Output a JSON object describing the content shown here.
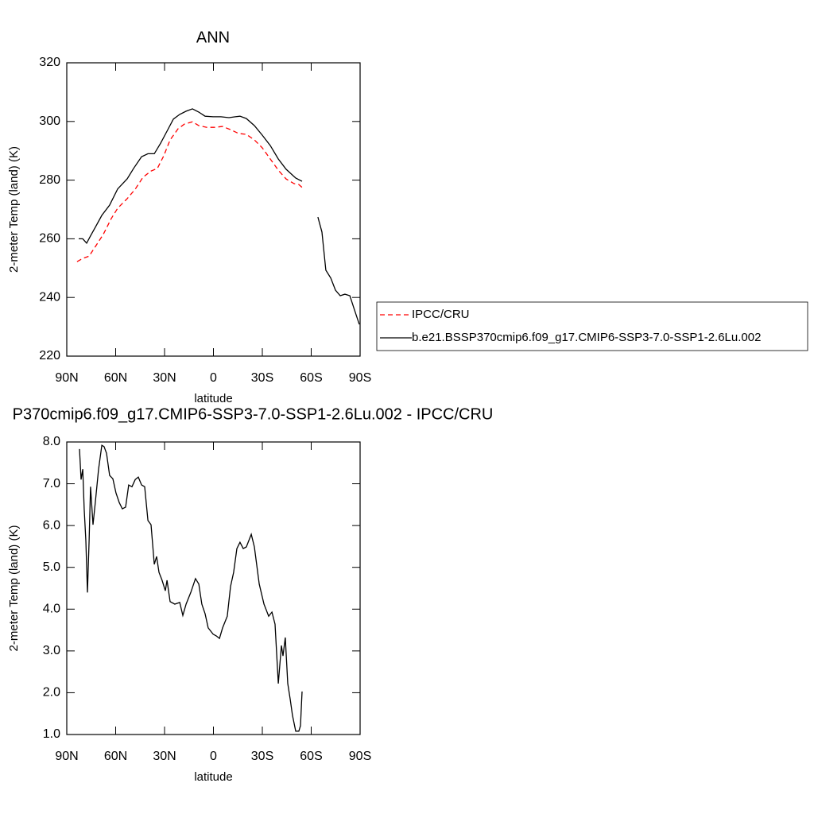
{
  "chart_data": [
    {
      "type": "line",
      "title": "ANN",
      "y_label": "2-meter Temp (land) (K)",
      "x_label": "latitude",
      "xlim": [
        90,
        -90
      ],
      "ylim": [
        220,
        320
      ],
      "xticks": [
        {
          "value": 90,
          "label": "90N"
        },
        {
          "value": 60,
          "label": "60N"
        },
        {
          "value": 30,
          "label": "30N"
        },
        0,
        {
          "value": -30,
          "label": "30S"
        },
        {
          "value": -60,
          "label": "60S"
        },
        {
          "value": -90,
          "label": "90S"
        }
      ],
      "yticks": [
        220,
        240,
        260,
        280,
        300,
        320
      ],
      "legend": "right",
      "series": [
        {
          "name": "IPCC/CRU",
          "color": "#ff0000",
          "dashed": true,
          "x": [
            83.7,
            80.2,
            76.3,
            72.4,
            67.6,
            62.7,
            58.8,
            52.9,
            48,
            43.2,
            38.3,
            34.4,
            30.5,
            26.6,
            21.7,
            17.8,
            12.9,
            9,
            4.1,
            -0.7,
            -5.6,
            -10.5,
            -15.4,
            -20.2,
            -25.1,
            -30,
            -34.9,
            -39.8,
            -44.6,
            -49.5,
            -52.4,
            -54.4
          ],
          "values": [
            252.2,
            253.3,
            254.1,
            257.4,
            261.5,
            266.9,
            270.4,
            273.7,
            276.9,
            281,
            283.1,
            284,
            288.3,
            293.7,
            297.5,
            299.1,
            299.9,
            298.6,
            298,
            298,
            298.3,
            297.2,
            295.9,
            295.6,
            293.7,
            291,
            287.2,
            283.4,
            280.4,
            278.8,
            278.5,
            277.5
          ]
        },
        {
          "name": "b.e21.BSSP370cmip6.f09_g17.CMIP6-SSP3-7.0-SSP1-2.6Lu.002",
          "color": "#000000",
          "dashed": false,
          "x": [
            82.7,
            80.2,
            77.8,
            75.4,
            72.4,
            68.5,
            63.7,
            58.8,
            52.9,
            49,
            44.1,
            40.2,
            36.3,
            32.4,
            28.5,
            24.6,
            20.7,
            16.8,
            12.9,
            9,
            5.1,
            0.2,
            -4.6,
            -9.5,
            -13.4,
            -16.3,
            -20.2,
            -25.1,
            -30,
            -34.9,
            -39.8,
            -44.6,
            -50.5,
            -54.4,
            -59.3,
            -64.1,
            -66.6,
            -69,
            -72,
            -74.9,
            -77.8,
            -80.7,
            -83.7,
            -86.6,
            -89.5
          ],
          "values": [
            260,
            260,
            258.5,
            261,
            264,
            268,
            271.5,
            277,
            280.5,
            284,
            288,
            289,
            289,
            292.6,
            296.7,
            300.8,
            302.4,
            303.5,
            304.3,
            303.2,
            301.8,
            301.6,
            301.6,
            301.3,
            301.6,
            301.8,
            301,
            298.6,
            295.3,
            291.8,
            287.2,
            283.7,
            280.7,
            279.6,
            null,
            267.4,
            262.3,
            249.3,
            246.6,
            242.5,
            240.6,
            241.1,
            240.6,
            235.7,
            230.8
          ]
        }
      ]
    },
    {
      "type": "line",
      "title": "P370cmip6.f09_g17.CMIP6-SSP3-7.0-SSP1-2.6Lu.002 - IPCC/CRU",
      "y_label": "2-meter Temp (land) (K)",
      "x_label": "latitude",
      "xlim": [
        90,
        -90
      ],
      "ylim": [
        1,
        8
      ],
      "xticks": [
        {
          "value": 90,
          "label": "90N"
        },
        {
          "value": 60,
          "label": "60N"
        },
        {
          "value": 30,
          "label": "30N"
        },
        0,
        {
          "value": -30,
          "label": "30S"
        },
        {
          "value": -60,
          "label": "60S"
        },
        {
          "value": -90,
          "label": "90S"
        }
      ],
      "yticks": [
        {
          "value": 1,
          "label": "1.0"
        },
        {
          "value": 2,
          "label": "2.0"
        },
        {
          "value": 3,
          "label": "3.0"
        },
        {
          "value": 4,
          "label": "4.0"
        },
        {
          "value": 5,
          "label": "5.0"
        },
        {
          "value": 6,
          "label": "6.0"
        },
        {
          "value": 7,
          "label": "7.0"
        },
        {
          "value": 8,
          "label": "8.0"
        }
      ],
      "series": [
        {
          "color": "#000000",
          "dashed": false,
          "x": [
            82.2,
            81.2,
            80.2,
            79.3,
            78.3,
            77.3,
            76.3,
            75.4,
            73.9,
            72.4,
            70.5,
            68.5,
            67.1,
            65.6,
            63.7,
            61.7,
            59.8,
            57.8,
            55.9,
            53.9,
            52,
            50,
            48,
            46.1,
            44.1,
            42.2,
            40.2,
            38.3,
            36.3,
            34.9,
            33.4,
            31.5,
            29.5,
            28.5,
            26.6,
            23.7,
            20.7,
            18.8,
            16.8,
            13.9,
            11,
            9,
            7.1,
            5.1,
            3.2,
            0.2,
            -1.7,
            -3.7,
            -5.6,
            -8.5,
            -10.5,
            -12.4,
            -14.4,
            -16.3,
            -18.3,
            -20.2,
            -23.2,
            -25.1,
            -28.1,
            -31,
            -33.9,
            -35.9,
            -37.8,
            -39.8,
            -41.7,
            -42.7,
            -44.1,
            -45.6,
            -47.1,
            -48.5,
            -50.5,
            -52.4,
            -53.4,
            -54.4
          ],
          "values": [
            7.83,
            7.1,
            7.35,
            6.4,
            5.64,
            4.4,
            5.64,
            6.93,
            6.02,
            6.59,
            7.35,
            7.92,
            7.89,
            7.73,
            7.2,
            7.12,
            6.78,
            6.55,
            6.4,
            6.44,
            6.97,
            6.93,
            7.1,
            7.16,
            6.97,
            6.93,
            6.12,
            6.02,
            5.07,
            5.26,
            4.88,
            4.69,
            4.44,
            4.69,
            4.18,
            4.12,
            4.16,
            3.85,
            4.12,
            4.4,
            4.73,
            4.6,
            4.12,
            3.89,
            3.55,
            3.4,
            3.36,
            3.3,
            3.55,
            3.83,
            4.54,
            4.88,
            5.45,
            5.6,
            5.45,
            5.49,
            5.79,
            5.49,
            4.6,
            4.12,
            3.83,
            3.93,
            3.64,
            2.22,
            3.13,
            2.88,
            3.32,
            2.22,
            1.84,
            1.46,
            1.08,
            1.08,
            1.21,
            2.03
          ]
        }
      ]
    }
  ]
}
